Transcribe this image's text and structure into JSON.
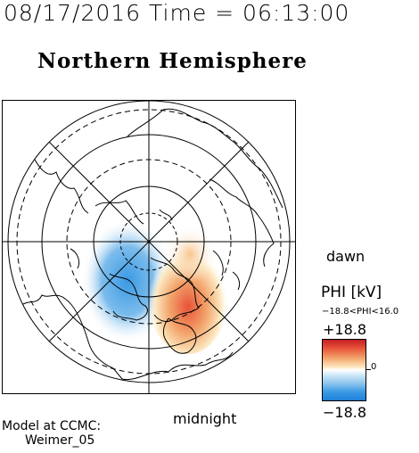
{
  "header": {
    "datetime": "08/17/2016 Time = 06:13:00"
  },
  "title": "Northern Hemisphere",
  "map": {
    "projection": "polar stereographic",
    "labels": {
      "dawn": "dawn",
      "midnight": "midnight"
    },
    "colors": {
      "positive": "#e8533a",
      "negative": "#3a9ae3",
      "lines": "#000000"
    }
  },
  "colorbar": {
    "title": "PHI [kV]",
    "range_text": "−18.8<PHI<16.0",
    "max_label": "+18.8",
    "zero_label": "0",
    "min_label": "−18.8"
  },
  "model": {
    "line1": "Model at CCMC:",
    "line2": "Weimer_05"
  }
}
